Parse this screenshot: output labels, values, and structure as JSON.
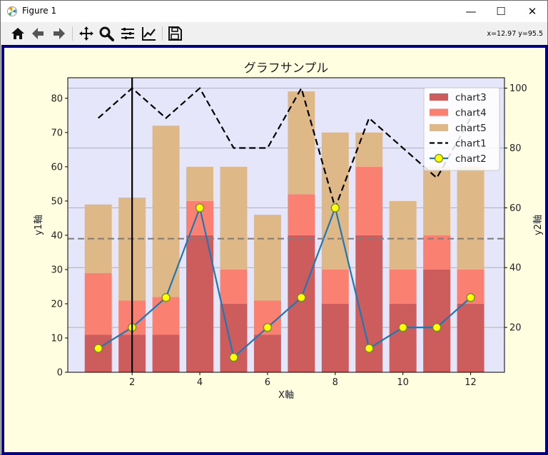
{
  "window": {
    "title": "Figure 1",
    "minimize": "—",
    "maximize": "☐",
    "close": "✕"
  },
  "toolbar": {
    "icons": [
      "home-icon",
      "back-icon",
      "forward-icon",
      "pan-icon",
      "zoom-icon",
      "configure-subplots-icon",
      "edit-axis-icon",
      "save-icon"
    ],
    "coords": "x=12.97 y=95.5"
  },
  "colors": {
    "figure_bg": "#fffee0",
    "axes_bg": "#e6e6fa",
    "border": "#000080",
    "chart3": "#cd5c5c",
    "chart4": "#fa8072",
    "chart5": "#deb887",
    "chart1": "#000000",
    "chart2": "#1f77b4",
    "marker_fill": "#ffff00",
    "marker_edge": "#6b8e23",
    "hline": "#808080",
    "vline": "#000000"
  },
  "chart_data": {
    "type": "bar",
    "title": "グラフサンプル",
    "xlabel": "X軸",
    "ylabel": "y1軸",
    "y2label": "y2軸",
    "x": [
      1,
      2,
      3,
      4,
      5,
      6,
      7,
      8,
      9,
      10,
      11,
      12
    ],
    "xticks": [
      2,
      4,
      6,
      8,
      10,
      12
    ],
    "xlim": [
      0.1,
      13.0
    ],
    "ylim": [
      0,
      86
    ],
    "yticks": [
      0,
      10,
      20,
      30,
      40,
      50,
      60,
      70,
      80
    ],
    "y2lim": [
      5,
      103.5
    ],
    "y2ticks": [
      20,
      40,
      60,
      80,
      100
    ],
    "grid": "y2-axis horizontal",
    "legend_placement": "top-right",
    "series": [
      {
        "name": "chart3",
        "axis": "y1",
        "kind": "bar",
        "values": [
          11,
          11,
          11,
          40,
          20,
          11,
          40,
          20,
          40,
          20,
          30,
          20
        ]
      },
      {
        "name": "chart4",
        "axis": "y1",
        "kind": "bar",
        "values": [
          18,
          10,
          11,
          10,
          10,
          10,
          12,
          10,
          20,
          10,
          10,
          10
        ]
      },
      {
        "name": "chart5",
        "axis": "y1",
        "kind": "bar",
        "values": [
          20,
          30,
          50,
          10,
          30,
          25,
          30,
          40,
          10,
          20,
          20,
          30
        ]
      },
      {
        "name": "chart1",
        "axis": "y2",
        "kind": "line",
        "style": "dashed",
        "values": [
          90,
          100,
          90,
          100,
          80,
          80,
          100,
          60,
          90,
          80,
          70,
          90
        ]
      },
      {
        "name": "chart2",
        "axis": "y2",
        "kind": "line",
        "style": "solid-markers",
        "values": [
          13,
          20,
          30,
          60,
          10,
          20,
          30,
          60,
          13,
          20,
          20,
          30
        ]
      }
    ],
    "hline_y1": 39,
    "vline_x": 2
  }
}
